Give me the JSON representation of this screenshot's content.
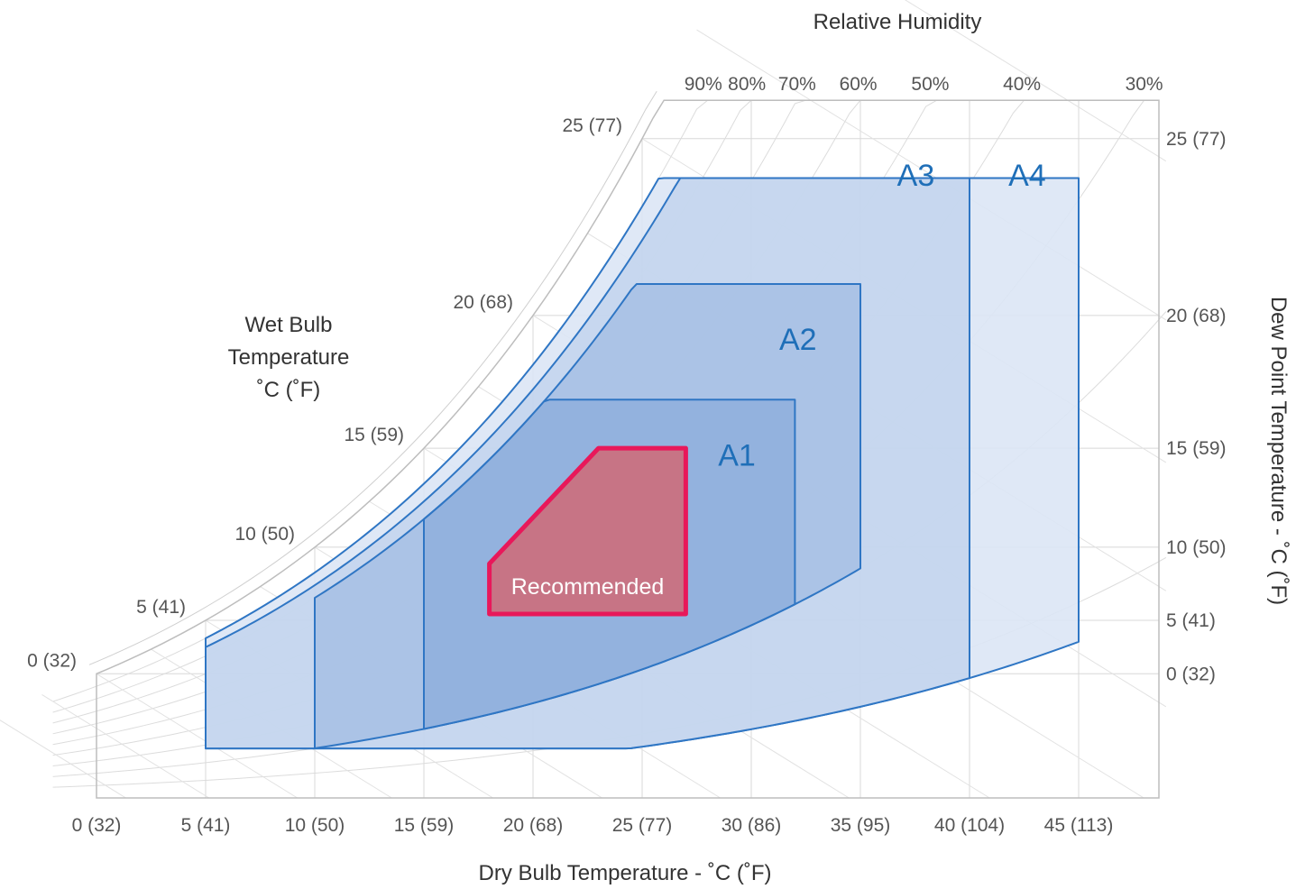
{
  "chart_data": {
    "type": "area",
    "chart_kind": "psychrometric",
    "xlabel": "Dry Bulb Temperature - ˚C (˚F)",
    "x_ticks": [
      "0 (32)",
      "5 (41)",
      "10 (50)",
      "15 (59)",
      "20 (68)",
      "25 (77)",
      "30 (86)",
      "35 (95)",
      "40 (104)",
      "45 (113)"
    ],
    "x_range": [
      0,
      49
    ],
    "ylabel": "Dew Point Temperature - ˚C (˚F)",
    "y_ticks": [
      {
        "dp": 25,
        "label": "25 (77)"
      },
      {
        "dp": 20,
        "label": "20 (68)"
      },
      {
        "dp": 15,
        "label": "15 (59)"
      },
      {
        "dp": 10,
        "label": "10 (50)"
      },
      {
        "dp": 5,
        "label": "5 (41)"
      },
      {
        "dp": 0,
        "label": "0 (32)"
      }
    ],
    "rh_title": "Relative Humidity",
    "rh_ticks": [
      {
        "rh": 90,
        "label": "90%"
      },
      {
        "rh": 80,
        "label": "80%"
      },
      {
        "rh": 70,
        "label": "70%"
      },
      {
        "rh": 60,
        "label": "60%"
      },
      {
        "rh": 50,
        "label": "50%"
      },
      {
        "rh": 40,
        "label": "40%"
      },
      {
        "rh": 30,
        "label": "30%"
      }
    ],
    "wb_title": [
      "Wet Bulb",
      "Temperature",
      "˚C (˚F)"
    ],
    "wb_ticks": [
      {
        "wb": 25,
        "label": "25 (77)"
      },
      {
        "wb": 20,
        "label": "20 (68)"
      },
      {
        "wb": 15,
        "label": "15 (59)"
      },
      {
        "wb": 10,
        "label": "10 (50)"
      },
      {
        "wb": 5,
        "label": "5 (41)"
      },
      {
        "wb": 0,
        "label": "0 (32)"
      }
    ],
    "zones": [
      {
        "name": "A4",
        "fill": "#dbe6f5",
        "stroke": "#2f76c4",
        "opacity": 0.9,
        "db_range": [
          5,
          45
        ],
        "dp_range": [
          -12,
          24
        ],
        "rh_range": [
          8,
          90
        ]
      },
      {
        "name": "A3",
        "fill": "#bfd2ec",
        "stroke": "#2f76c4",
        "opacity": 0.75,
        "db_range": [
          5,
          40
        ],
        "dp_range": [
          -12,
          24
        ],
        "rh_range": [
          8,
          85
        ]
      },
      {
        "name": "A2",
        "fill": "#9cb9e1",
        "stroke": "#2f76c4",
        "opacity": 0.65,
        "db_range": [
          10,
          35
        ],
        "dp_range": [
          -12,
          21
        ],
        "rh_range": [
          20,
          80
        ]
      },
      {
        "name": "A1",
        "fill": "#86a9da",
        "stroke": "#2f76c4",
        "opacity": 0.65,
        "db_range": [
          15,
          32
        ],
        "dp_range": [
          -12,
          17
        ],
        "rh_range": [
          20,
          80
        ]
      },
      {
        "name": "Recommended",
        "fill": "#c9717f",
        "stroke": "#e8185a",
        "opacity": 0.95,
        "points_db_dp": [
          [
            18,
            9
          ],
          [
            18,
            5.5
          ],
          [
            27,
            5.5
          ],
          [
            27,
            15
          ],
          [
            23,
            15
          ]
        ]
      }
    ],
    "grid": true
  }
}
